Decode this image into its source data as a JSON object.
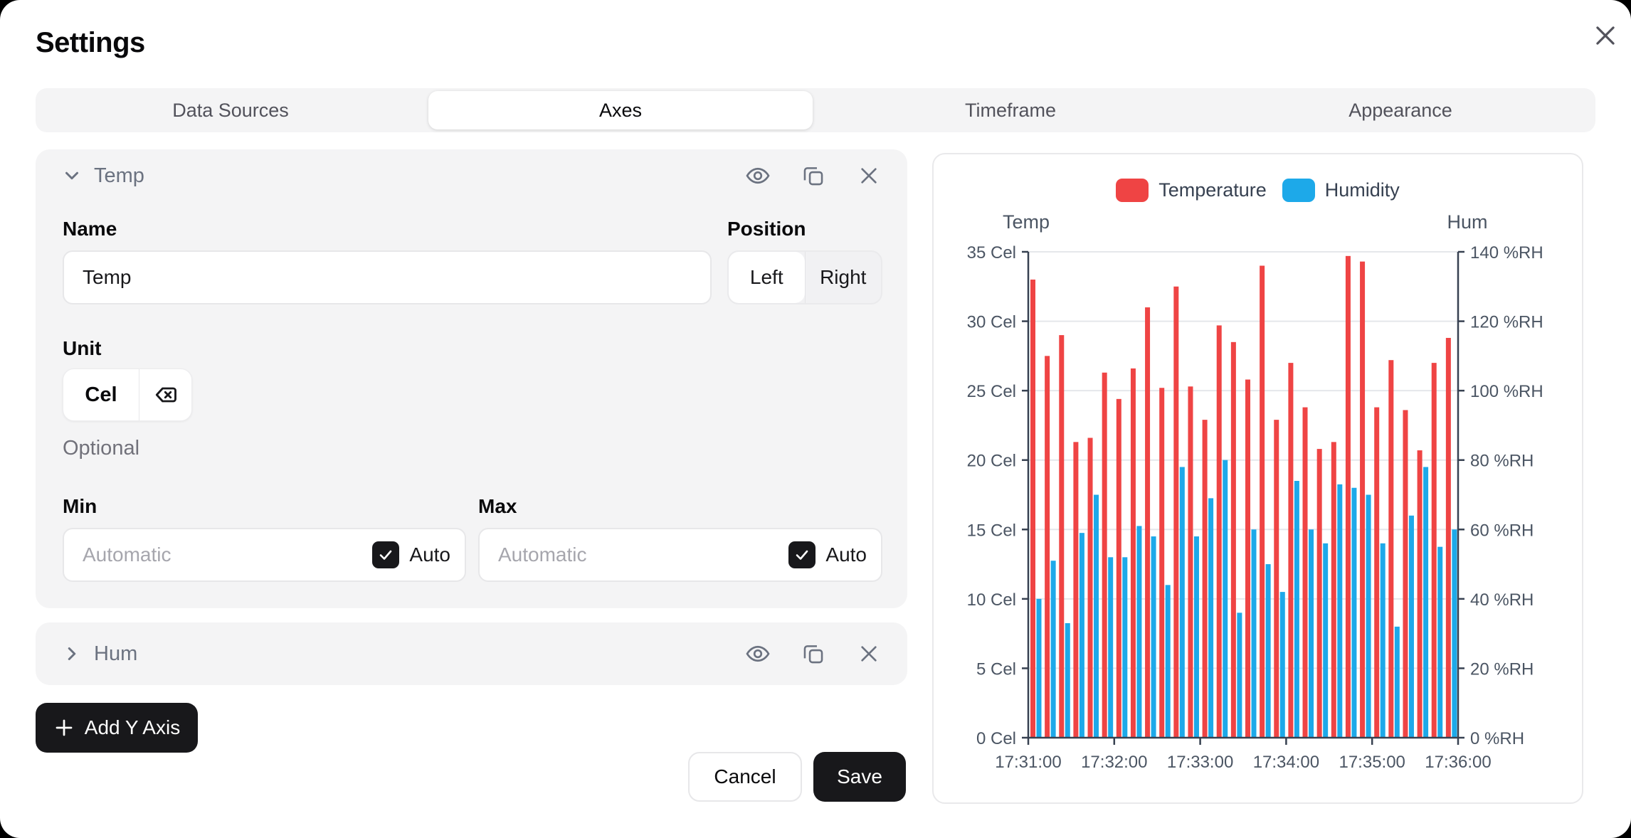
{
  "window": {
    "title": "Settings"
  },
  "tabs": [
    {
      "label": "Data Sources",
      "active": false
    },
    {
      "label": "Axes",
      "active": true
    },
    {
      "label": "Timeframe",
      "active": false
    },
    {
      "label": "Appearance",
      "active": false
    }
  ],
  "temp_axis": {
    "title": "Temp",
    "name_label": "Name",
    "name_value": "Temp",
    "position_label": "Position",
    "position_left": "Left",
    "position_right": "Right",
    "position_selected": "Left",
    "unit_label": "Unit",
    "unit_value": "Cel",
    "unit_hint": "Optional",
    "min_label": "Min",
    "min_placeholder": "Automatic",
    "min_auto_label": "Auto",
    "min_auto_checked": true,
    "max_label": "Max",
    "max_placeholder": "Automatic",
    "max_auto_label": "Auto",
    "max_auto_checked": true
  },
  "hum_axis": {
    "title": "Hum"
  },
  "actions": {
    "add_y_axis": "Add Y Axis",
    "cancel": "Cancel",
    "save": "Save"
  },
  "colors": {
    "temperature": "#ef4444",
    "humidity": "#1da9e9",
    "button_dark": "#18181b",
    "card_bg": "#f4f4f5",
    "grid": "#e5e7eb",
    "axis_line": "#374151"
  },
  "chart_data": {
    "type": "bar",
    "title": "",
    "grid": true,
    "legend_position": "top",
    "legend": [
      {
        "label": "Temperature",
        "color": "#ef4444"
      },
      {
        "label": "Humidity",
        "color": "#1da9e9"
      }
    ],
    "left_axis": {
      "title": "Temp",
      "min": 0,
      "max": 35,
      "ticks": [
        0,
        5,
        10,
        15,
        20,
        25,
        30,
        35
      ],
      "tick_labels": [
        "0 Cel",
        "5 Cel",
        "10 Cel",
        "15 Cel",
        "20 Cel",
        "25 Cel",
        "30 Cel",
        "35 Cel"
      ]
    },
    "right_axis": {
      "title": "Hum",
      "min": 0,
      "max": 140,
      "ticks": [
        0,
        20,
        40,
        60,
        80,
        100,
        120,
        140
      ],
      "tick_labels": [
        "0 %RH",
        "20 %RH",
        "40 %RH",
        "60 %RH",
        "80 %RH",
        "100 %RH",
        "120 %RH",
        "140 %RH"
      ]
    },
    "x_tick_labels": [
      "17:31:00",
      "17:32:00",
      "17:33:00",
      "17:34:00",
      "17:35:00",
      "17:36:00"
    ],
    "x": [
      "17:31:00",
      "17:31:10",
      "17:31:20",
      "17:31:30",
      "17:31:40",
      "17:31:50",
      "17:32:00",
      "17:32:10",
      "17:32:20",
      "17:32:30",
      "17:32:40",
      "17:32:50",
      "17:33:00",
      "17:33:10",
      "17:33:20",
      "17:33:30",
      "17:33:40",
      "17:33:50",
      "17:34:00",
      "17:34:10",
      "17:34:20",
      "17:34:30",
      "17:34:40",
      "17:34:50",
      "17:35:00",
      "17:35:10",
      "17:35:20",
      "17:35:30",
      "17:35:40",
      "17:35:50"
    ],
    "series": [
      {
        "name": "Temperature",
        "axis": "left",
        "unit": "Cel",
        "color": "#ef4444",
        "values": [
          33.0,
          27.5,
          29.0,
          21.3,
          21.6,
          26.3,
          24.4,
          26.6,
          31.0,
          25.2,
          32.5,
          25.3,
          22.9,
          29.7,
          28.5,
          25.8,
          34.0,
          22.9,
          27.0,
          23.8,
          20.8,
          21.3,
          34.7,
          34.3,
          23.8,
          27.2,
          23.6,
          20.7,
          27.0,
          28.8
        ]
      },
      {
        "name": "Humidity",
        "axis": "right",
        "unit": "%RH",
        "color": "#1da9e9",
        "values": [
          40,
          51,
          33,
          59,
          70,
          52,
          52,
          61,
          58,
          44,
          78,
          58,
          69,
          80,
          36,
          60,
          50,
          42,
          74,
          60,
          56,
          73,
          72,
          70,
          56,
          32,
          64,
          78,
          55,
          60
        ]
      }
    ]
  }
}
